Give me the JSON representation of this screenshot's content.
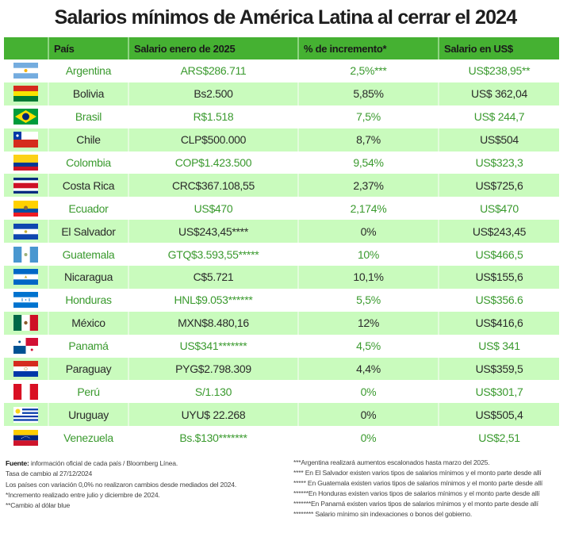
{
  "title": "Salarios mínimos de América Latina al cerrar el 2024",
  "colors": {
    "header_bg": "#45b132",
    "row_alt_bg": "#c9fbbd",
    "accent_text": "#3a9a2e"
  },
  "table": {
    "headers": [
      "",
      "País",
      "Salario enero de 2025",
      "% de incremento*",
      "Salario en US$"
    ],
    "rows": [
      {
        "flag": "argentina-flag",
        "country": "Argentina",
        "salary": "ARS$286.711",
        "increase": "2,5%***",
        "usd": "US$238,95**"
      },
      {
        "flag": "bolivia-flag",
        "country": "Bolivia",
        "salary": "Bs2.500",
        "increase": "5,85%",
        "usd": "US$ 362,04"
      },
      {
        "flag": "brazil-flag",
        "country": "Brasil",
        "salary": "R$1.518",
        "increase": "7,5%",
        "usd": "US$ 244,7"
      },
      {
        "flag": "chile-flag",
        "country": "Chile",
        "salary": "CLP$500.000",
        "increase": "8,7%",
        "usd": "US$504"
      },
      {
        "flag": "colombia-flag",
        "country": "Colombia",
        "salary": "COP$1.423.500",
        "increase": "9,54%",
        "usd": "US$323,3"
      },
      {
        "flag": "costa-rica-flag",
        "country": "Costa Rica",
        "salary": "CRC$367.108,55",
        "increase": "2,37%",
        "usd": "US$725,6"
      },
      {
        "flag": "ecuador-flag",
        "country": "Ecuador",
        "salary": "US$470",
        "increase": "2,174%",
        "usd": "US$470"
      },
      {
        "flag": "el-salvador-flag",
        "country": "El Salvador",
        "salary": "US$243,45****",
        "increase": "0%",
        "usd": "US$243,45"
      },
      {
        "flag": "guatemala-flag",
        "country": "Guatemala",
        "salary": "GTQ$3.593,55*****",
        "increase": "10%",
        "usd": "US$466,5"
      },
      {
        "flag": "nicaragua-flag",
        "country": "Nicaragua",
        "salary": "C$5.721",
        "increase": "10,1%",
        "usd": "US$155,6"
      },
      {
        "flag": "honduras-flag",
        "country": "Honduras",
        "salary": "HNL$9.053******",
        "increase": "5,5%",
        "usd": "US$356.6"
      },
      {
        "flag": "mexico-flag",
        "country": "México",
        "salary": "MXN$8.480,16",
        "increase": "12%",
        "usd": "US$416,6"
      },
      {
        "flag": "panama-flag",
        "country": "Panamá",
        "salary": "US$341*******",
        "increase": "4,5%",
        "usd": "US$ 341"
      },
      {
        "flag": "paraguay-flag",
        "country": "Paraguay",
        "salary": "PYG$2.798.309",
        "increase": "4,4%",
        "usd": "US$359,5"
      },
      {
        "flag": "peru-flag",
        "country": "Perú",
        "salary": "S/1.130",
        "increase": "0%",
        "usd": "US$301,7"
      },
      {
        "flag": "uruguay-flag",
        "country": "Uruguay",
        "salary": "UYU$ 22.268",
        "increase": "0%",
        "usd": "US$505,4"
      },
      {
        "flag": "venezuela-flag",
        "country": "Venezuela",
        "salary": "Bs.$130*******",
        "increase": "0%",
        "usd": "US$2,51"
      }
    ]
  },
  "footnotes": {
    "source_label": "Fuente:",
    "source_text": " información oficial de cada país / Bloomberg Línea.",
    "left": [
      "Tasa de cambio al  27/12/2024",
      "Los países con variación 0,0% no realizaron cambios desde mediados del 2024.",
      "*Incremento realizado entre julio y diciembre de 2024.",
      "**Cambio al dólar blue"
    ],
    "right": [
      "***Argentina realizará aumentos escalonados  hasta marzo del 2025.",
      "**** En El Salvador existen varios tipos de salarios mínimos y el monto parte desde allí",
      "***** En Guatemala existen varios tipos de salarios mínimos y el monto parte desde allí",
      "******En Honduras existen varios tipos de salarios mínimos y el monto parte desde allí",
      "*******En Panamá existen varios tipos de salarios mínimos y el monto parte desde allí",
      "******** Salario mínimo sin indexaciones o bonos del gobierno."
    ]
  }
}
